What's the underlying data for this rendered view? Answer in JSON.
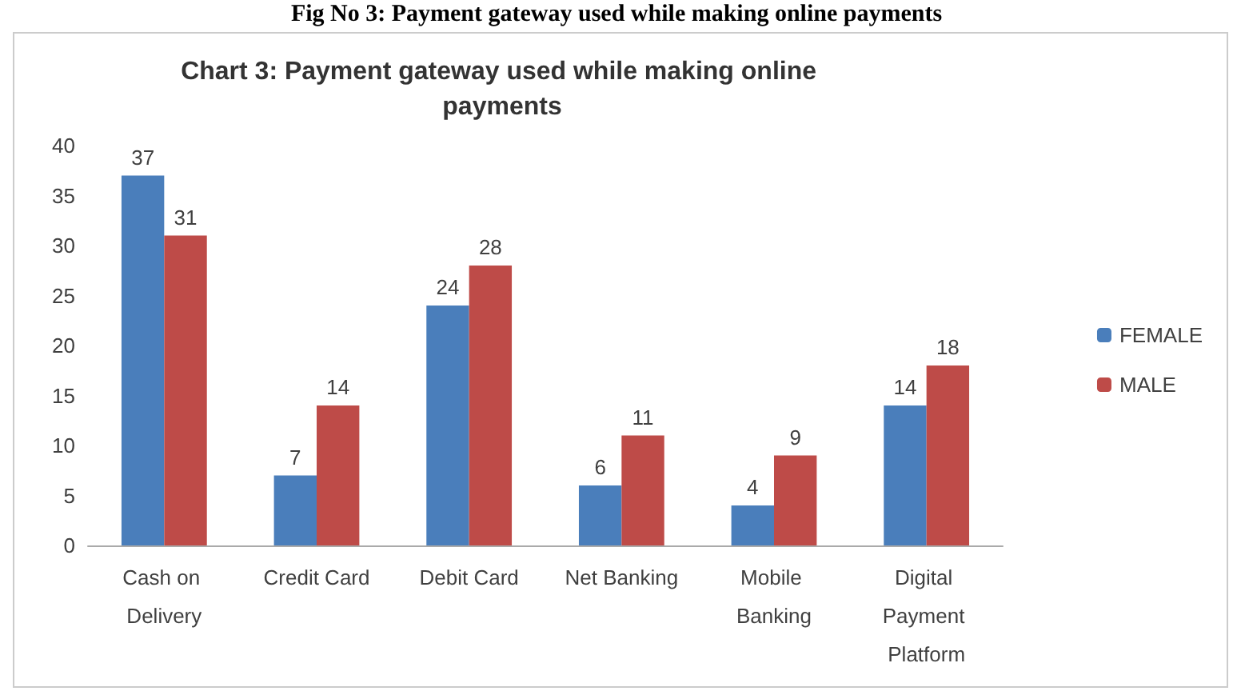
{
  "chart_data": {
    "type": "bar",
    "title": "Chart 3: Payment gateway used while making online payments",
    "annotations": [
      "Fig No 3: Payment gateway used while making online payments"
    ],
    "categories": [
      "Cash on Delivery",
      "Credit Card",
      "Debit Card",
      "Net Banking",
      "Mobile Banking",
      "Digital Payment Platform"
    ],
    "series": [
      {
        "name": "FEMALE",
        "color": "#4a7ebb",
        "values": [
          37,
          7,
          24,
          6,
          4,
          14
        ]
      },
      {
        "name": "MALE",
        "color": "#be4b48",
        "values": [
          31,
          14,
          28,
          11,
          9,
          18
        ]
      }
    ],
    "ylim": [
      0,
      40
    ],
    "yticks": [
      0,
      5,
      10,
      15,
      20,
      25,
      30,
      35,
      40
    ],
    "grid": false,
    "legend": "right",
    "data_labels": true
  }
}
